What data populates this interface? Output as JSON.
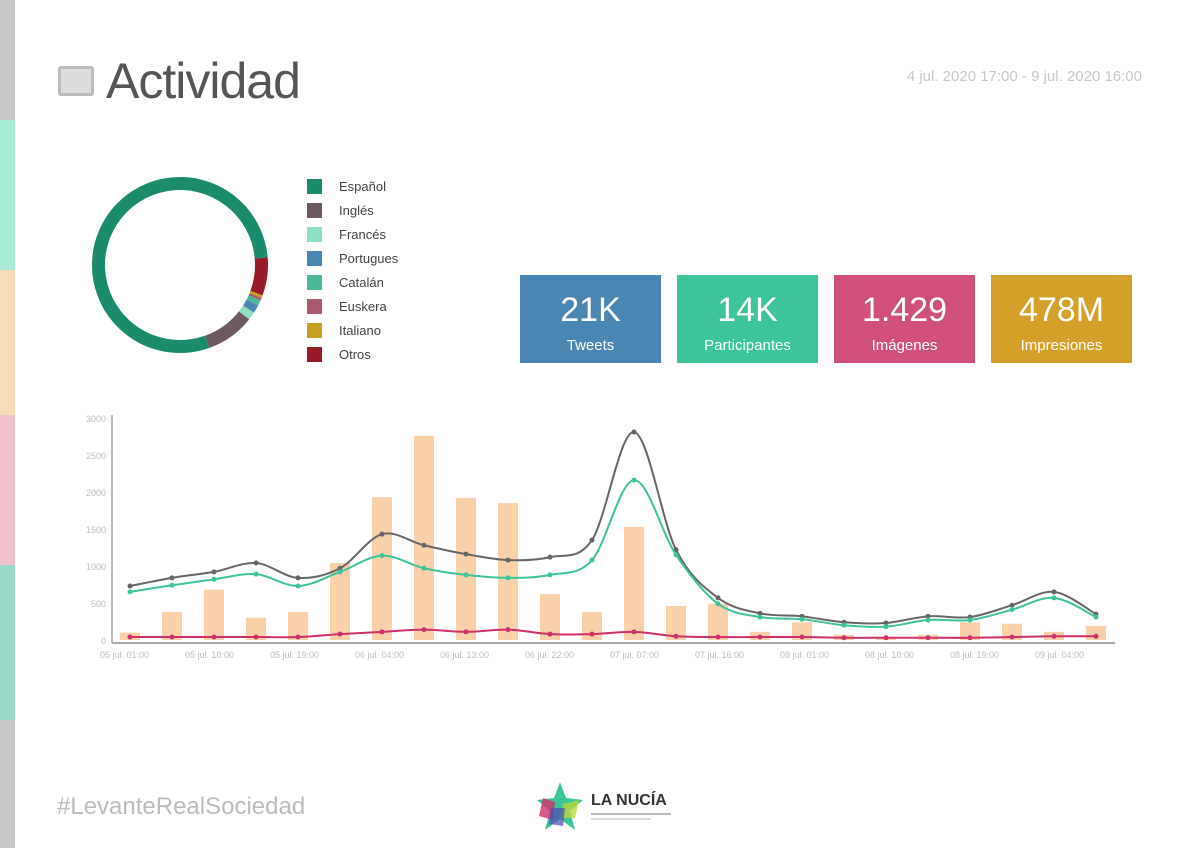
{
  "header": {
    "title": "Actividad",
    "title_icon": "chat-bubble-icon",
    "date_range": "4 jul. 2020 17:00 - 9 jul. 2020 16:00"
  },
  "side_strip_colors": [
    "#c8c8c8",
    "#a8ecd8",
    "#f8dcb8",
    "#f0c0cc",
    "#9ad8c8",
    "#c8c8c8"
  ],
  "languages": [
    {
      "label": "Español",
      "color": "#1a8c6c",
      "share": 79
    },
    {
      "label": "Inglés",
      "color": "#6e5a5e",
      "share": 9
    },
    {
      "label": "Francés",
      "color": "#8ee0c4",
      "share": 1.5
    },
    {
      "label": "Portugues",
      "color": "#4a86b4",
      "share": 1.5
    },
    {
      "label": "Catalán",
      "color": "#4bb89a",
      "share": 1
    },
    {
      "label": "Euskera",
      "color": "#a85a6e",
      "share": 0.5
    },
    {
      "label": "Italiano",
      "color": "#c8a020",
      "share": 0.5
    },
    {
      "label": "Otros",
      "color": "#9a1a2a",
      "share": 7
    }
  ],
  "stats": [
    {
      "value": "21K",
      "label": "Tweets",
      "color": "#4a86b4"
    },
    {
      "value": "14K",
      "label": "Participantes",
      "color": "#3cc49a"
    },
    {
      "value": "1.429",
      "label": "Imágenes",
      "color": "#d0507a"
    },
    {
      "value": "478M",
      "label": "Impresiones",
      "color": "#d4a02a"
    }
  ],
  "chart_data": {
    "type": "bar+line",
    "ylim": [
      0,
      3000
    ],
    "yticks": [
      "3000",
      "2500",
      "2000",
      "1500",
      "1000",
      "500",
      "0"
    ],
    "xtick_labels": [
      "05 jul. 01:00",
      "05 jul. 10:00",
      "05 jul. 19:00",
      "06 jul. 04:00",
      "06 jul. 13:00",
      "06 jul. 22:00",
      "07 jul. 07:00",
      "07 jul. 16:00",
      "08 jul. 01:00",
      "08 jul. 10:00",
      "08 jul. 19:00",
      "09 jul. 04:00"
    ],
    "bars": {
      "color": "#f8c898",
      "values": [
        100,
        380,
        680,
        300,
        380,
        1040,
        1930,
        2760,
        1920,
        1850,
        620,
        380,
        1530,
        460,
        490,
        110,
        240,
        70,
        40,
        70,
        240,
        220,
        110,
        190
      ]
    },
    "series": [
      {
        "color": "#666666",
        "values": [
          730,
          840,
          920,
          1040,
          840,
          970,
          1430,
          1280,
          1160,
          1080,
          1120,
          1350,
          2810,
          1220,
          570,
          360,
          320,
          240,
          230,
          320,
          310,
          470,
          650,
          350
        ]
      },
      {
        "color": "#3cc49a",
        "values": [
          650,
          740,
          820,
          890,
          730,
          920,
          1140,
          970,
          880,
          840,
          880,
          1080,
          2160,
          1150,
          490,
          310,
          280,
          200,
          180,
          270,
          270,
          410,
          570,
          310
        ]
      },
      {
        "color": "#d0306a",
        "values": [
          40,
          40,
          40,
          40,
          40,
          80,
          110,
          140,
          110,
          140,
          80,
          80,
          110,
          50,
          40,
          40,
          40,
          30,
          30,
          30,
          30,
          40,
          50,
          50
        ]
      }
    ],
    "grid": false
  },
  "footer": {
    "hashtag": "#LevanteRealSociedad",
    "logo_text": "LA NUCÍA"
  }
}
